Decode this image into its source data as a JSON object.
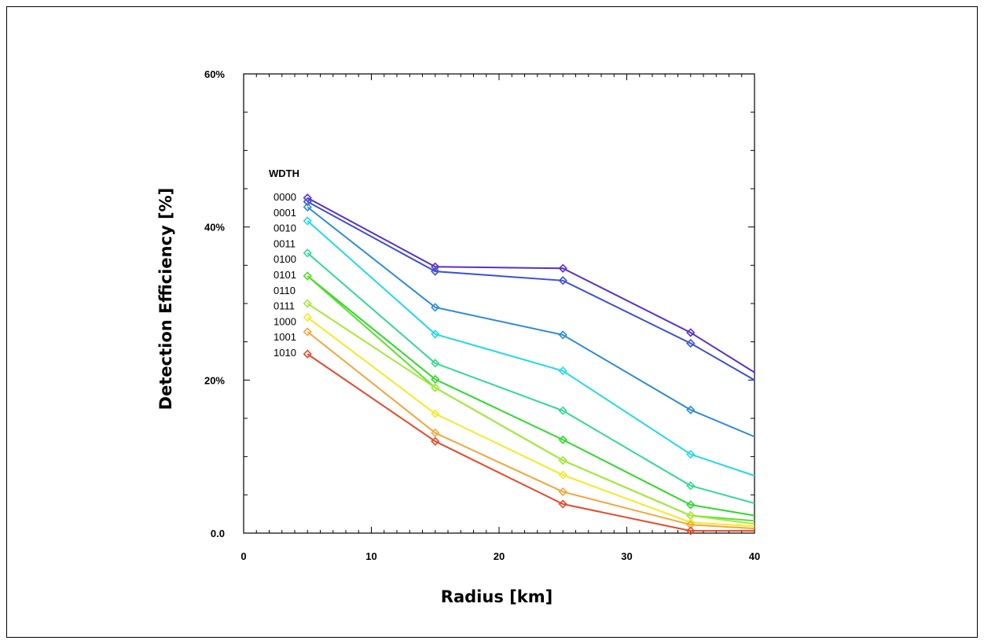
{
  "chart_data": {
    "type": "line",
    "xlabel": "Radius [km]",
    "ylabel": "Detection Efficiency [%]",
    "xlim": [
      0,
      40
    ],
    "ylim": [
      0,
      60
    ],
    "x_ticks": [
      0,
      10,
      20,
      30,
      40
    ],
    "x_tick_labels": [
      "0",
      "10",
      "20",
      "30",
      "40"
    ],
    "y_ticks": [
      0,
      20,
      40,
      60
    ],
    "y_tick_labels": [
      "0.0",
      "20%",
      "40%",
      "60%"
    ],
    "legend_title": "WDTH",
    "legend_placement": "left, inside plot",
    "grid": false,
    "marker": "diamond",
    "x": [
      5,
      15,
      25,
      35,
      40
    ],
    "series": [
      {
        "name": "0000",
        "color": "#5a2fc8",
        "values": [
          43.8,
          34.8,
          34.6,
          26.2,
          21.0
        ]
      },
      {
        "name": "0001",
        "color": "#3b4fd6",
        "values": [
          43.3,
          34.2,
          33.0,
          24.8,
          20.0
        ]
      },
      {
        "name": "0010",
        "color": "#2a8ad8",
        "values": [
          42.6,
          29.5,
          25.9,
          16.1,
          12.6
        ]
      },
      {
        "name": "0011",
        "color": "#22d8e6",
        "values": [
          40.8,
          26.0,
          21.2,
          10.3,
          7.5
        ]
      },
      {
        "name": "0100",
        "color": "#33d890",
        "values": [
          36.6,
          22.2,
          16.0,
          6.2,
          3.9
        ]
      },
      {
        "name": "0101",
        "color": "#2ed82a",
        "values": [
          33.6,
          20.1,
          12.2,
          3.7,
          2.3
        ]
      },
      {
        "name": "0110",
        "color": "#5ede2c",
        "values": [
          33.6,
          19.0,
          9.5,
          2.3,
          1.6
        ]
      },
      {
        "name": "0111",
        "color": "#a6e83a",
        "values": [
          30.0,
          19.0,
          9.5,
          2.3,
          1.2
        ]
      },
      {
        "name": "1000",
        "color": "#f2ea26",
        "values": [
          28.2,
          15.6,
          7.6,
          1.4,
          0.9
        ]
      },
      {
        "name": "1001",
        "color": "#f2a53a",
        "values": [
          26.3,
          13.1,
          5.4,
          1.1,
          0.6
        ]
      },
      {
        "name": "1010",
        "color": "#e44a2a",
        "values": [
          23.4,
          12.0,
          3.8,
          0.3,
          0.3
        ]
      }
    ]
  }
}
